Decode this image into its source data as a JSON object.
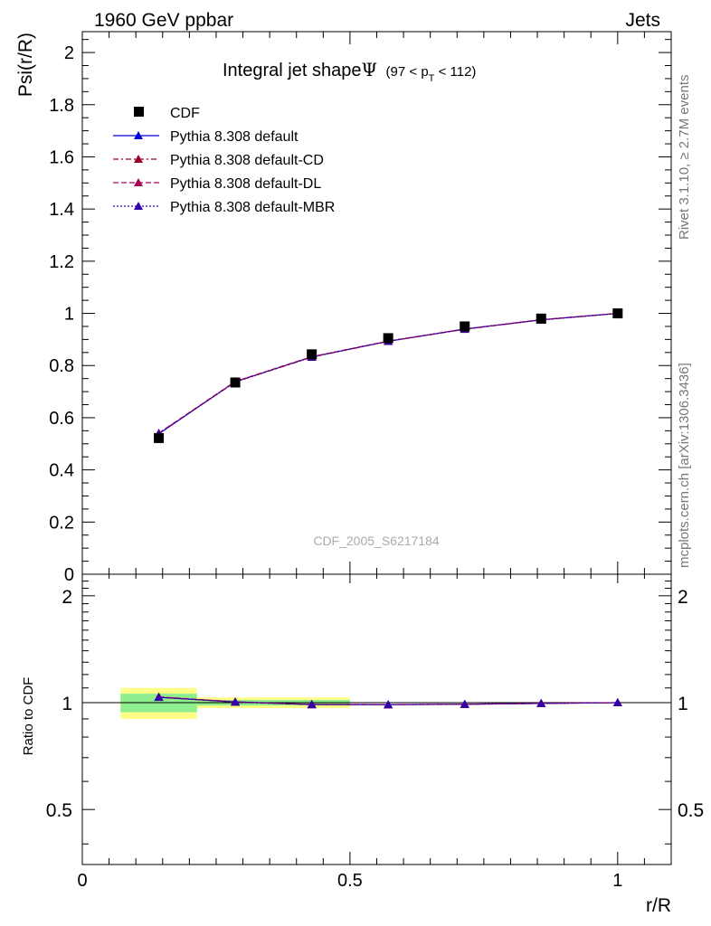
{
  "header": {
    "left": "1960 GeV ppbar",
    "right": "Jets"
  },
  "side_labels": {
    "rivet": "Rivet 3.1.10, ≥ 2.7M events",
    "mcplots": "mcplots.cern.ch [arXiv:1306.3436]"
  },
  "watermark": "CDF_2005_S6217184",
  "title": {
    "main": "Integral jet shape",
    "symbol": "Ψ",
    "range_pre": "(97 < p",
    "range_sub": "T",
    "range_post": " < 112)"
  },
  "chart_data": {
    "type": "line",
    "xlabel": "r/R",
    "ylabel": "Psi(r/R)",
    "ratio_ylabel": "Ratio to CDF",
    "xlim": [
      0,
      1.1
    ],
    "ylim": [
      0,
      2.08
    ],
    "ratio_ylim": [
      0.35,
      2.3
    ],
    "x_ticks": [
      "0",
      "0.5",
      "1"
    ],
    "y_ticks": [
      "0",
      "0.2",
      "0.4",
      "0.6",
      "0.8",
      "1",
      "1.2",
      "1.4",
      "1.6",
      "1.8",
      "2"
    ],
    "ratio_ticks": [
      "0.5",
      "1",
      "2"
    ],
    "data": {
      "name": "CDF",
      "x": [
        0.1429,
        0.2857,
        0.4286,
        0.5714,
        0.7143,
        0.8571,
        1.0
      ],
      "y": [
        0.522,
        0.735,
        0.843,
        0.905,
        0.95,
        0.98,
        1.0
      ],
      "band_inner": [
        [
          0.0714,
          0.2143,
          0.06
        ],
        [
          0.2143,
          0.5,
          0.018
        ]
      ],
      "band_outer": [
        [
          0.0714,
          0.2143,
          0.1
        ],
        [
          0.2143,
          0.5,
          0.035
        ]
      ]
    },
    "series": [
      {
        "name": "Pythia 8.308 default",
        "color": "#0000dd",
        "dash": "",
        "y": [
          0.538,
          0.738,
          0.833,
          0.893,
          0.94,
          0.975,
          1.0
        ],
        "ratio": [
          1.035,
          1.005,
          0.988,
          0.987,
          0.99,
          0.995,
          1.0
        ]
      },
      {
        "name": "Pythia 8.308 default-CD",
        "color": "#99002a",
        "dash": "6,3,2,3",
        "y": [
          0.54,
          0.737,
          0.832,
          0.893,
          0.939,
          0.975,
          1.0
        ],
        "ratio": [
          1.037,
          1.003,
          0.987,
          0.987,
          0.989,
          0.995,
          1.0
        ]
      },
      {
        "name": "Pythia 8.308 default-DL",
        "color": "#aa0055",
        "dash": "6,3",
        "y": [
          0.541,
          0.739,
          0.834,
          0.894,
          0.94,
          0.976,
          1.0
        ],
        "ratio": [
          1.038,
          1.006,
          0.989,
          0.988,
          0.99,
          0.996,
          1.0
        ]
      },
      {
        "name": "Pythia 8.308 default-MBR",
        "color": "#3300aa",
        "dash": "2,2",
        "y": [
          0.539,
          0.737,
          0.833,
          0.893,
          0.94,
          0.975,
          1.0
        ],
        "ratio": [
          1.036,
          1.004,
          0.988,
          0.987,
          0.99,
          0.995,
          1.0
        ]
      }
    ],
    "colors": {
      "band_inner": "#8fef8f",
      "band_outer": "#ffff88"
    }
  }
}
